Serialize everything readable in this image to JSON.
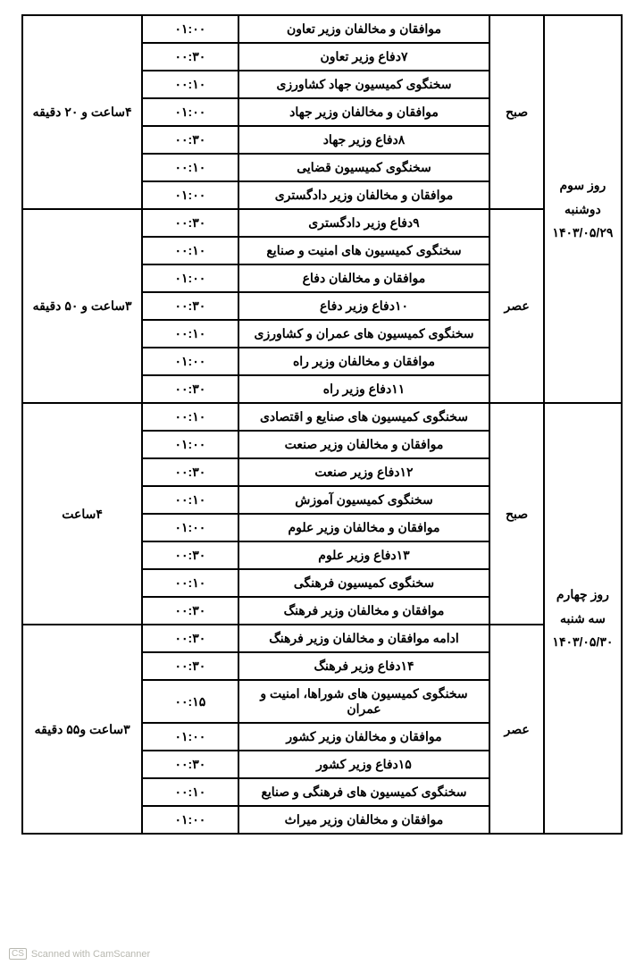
{
  "watermark": "Scanned with CamScanner",
  "watermark_badge": "CS",
  "days": [
    {
      "title": "روز سوم",
      "weekday": "دوشنبه",
      "date": "۱۴۰۳/۰۵/۲۹",
      "sessions": [
        {
          "name": "صبح",
          "total": "۴ساعت و ۲۰ دقیقه",
          "items": [
            {
              "desc": "موافقان و مخالفان وزیر تعاون",
              "time": "۰۱:۰۰"
            },
            {
              "desc": "۷دفاع وزیر تعاون",
              "time": "۰۰:۳۰"
            },
            {
              "desc": "سخنگوی کمیسیون جهاد کشاورزی",
              "time": "۰۰:۱۰"
            },
            {
              "desc": "موافقان و مخالفان وزیر جهاد",
              "time": "۰۱:۰۰"
            },
            {
              "desc": "۸دفاع وزیر جهاد",
              "time": "۰۰:۳۰"
            },
            {
              "desc": "سخنگوی کمیسیون قضایی",
              "time": "۰۰:۱۰"
            },
            {
              "desc": "موافقان و مخالفان وزیر دادگستری",
              "time": "۰۱:۰۰"
            }
          ]
        },
        {
          "name": "عصر",
          "total": "۳ساعت و ۵۰ دقیقه",
          "items": [
            {
              "desc": "۹دفاع وزیر دادگستری",
              "time": "۰۰:۳۰"
            },
            {
              "desc": "سخنگوی کمیسیون های امنیت و صنایع",
              "time": "۰۰:۱۰"
            },
            {
              "desc": "موافقان و مخالفان دفاع",
              "time": "۰۱:۰۰"
            },
            {
              "desc": "۱۰دفاع وزیر دفاع",
              "time": "۰۰:۳۰"
            },
            {
              "desc": "سخنگوی کمیسیون های عمران و کشاورزی",
              "time": "۰۰:۱۰"
            },
            {
              "desc": "موافقان و مخالفان وزیر راه",
              "time": "۰۱:۰۰"
            },
            {
              "desc": "۱۱دفاع وزیر راه",
              "time": "۰۰:۳۰"
            }
          ]
        }
      ]
    },
    {
      "title": "روز چهارم",
      "weekday": "سه شنبه",
      "date": "۱۴۰۳/۰۵/۳۰",
      "sessions": [
        {
          "name": "صبح",
          "total": "۴ساعت",
          "items": [
            {
              "desc": "سخنگوی کمیسیون های صنایع و اقتصادی",
              "time": "۰۰:۱۰"
            },
            {
              "desc": "موافقان و مخالفان وزیر صنعت",
              "time": "۰۱:۰۰"
            },
            {
              "desc": "۱۲دفاع وزیر صنعت",
              "time": "۰۰:۳۰"
            },
            {
              "desc": "سخنگوی کمیسیون آموزش",
              "time": "۰۰:۱۰"
            },
            {
              "desc": "موافقان و مخالفان وزیر علوم",
              "time": "۰۱:۰۰"
            },
            {
              "desc": "۱۳دفاع وزیر علوم",
              "time": "۰۰:۳۰"
            },
            {
              "desc": "سخنگوی کمیسیون فرهنگی",
              "time": "۰۰:۱۰"
            },
            {
              "desc": "موافقان و مخالفان وزیر فرهنگ",
              "time": "۰۰:۳۰"
            }
          ]
        },
        {
          "name": "عصر",
          "total": "۳ساعت و۵۵ دقیقه",
          "items": [
            {
              "desc": "ادامه موافقان و مخالفان وزیر فرهنگ",
              "time": "۰۰:۳۰"
            },
            {
              "desc": "۱۴دفاع وزیر فرهنگ",
              "time": "۰۰:۳۰"
            },
            {
              "desc": "سخنگوی کمیسیون های شوراها، امنیت و عمران",
              "time": "۰۰:۱۵"
            },
            {
              "desc": "موافقان و مخالفان وزیر کشور",
              "time": "۰۱:۰۰"
            },
            {
              "desc": "۱۵دفاع وزیر کشور",
              "time": "۰۰:۳۰"
            },
            {
              "desc": "سخنگوی کمیسیون های فرهنگی و صنایع",
              "time": "۰۰:۱۰"
            },
            {
              "desc": "موافقان و مخالفان وزیر میراث",
              "time": "۰۱:۰۰"
            }
          ]
        }
      ]
    }
  ]
}
